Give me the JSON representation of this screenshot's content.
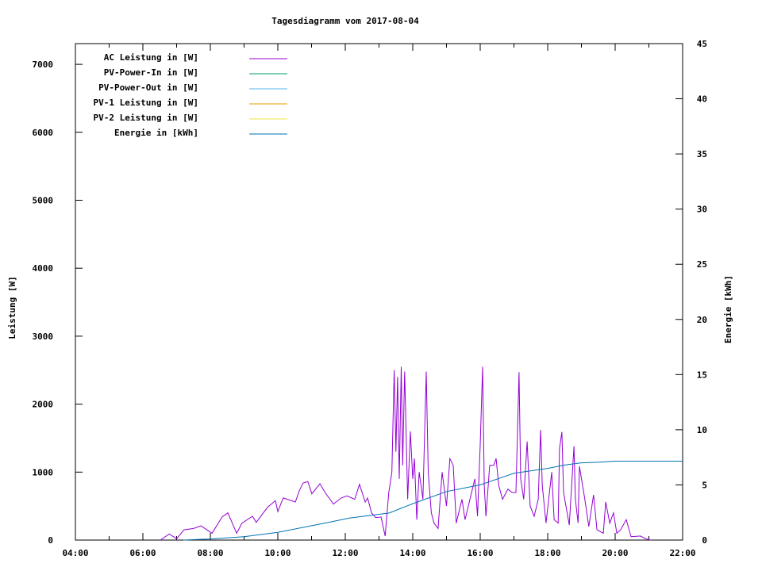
{
  "chart_data": {
    "type": "line",
    "title": "Tagesdiagramm vom 2017-08-04",
    "xlabel": "",
    "ylabel": "Leistung [W]",
    "y2label": "Energie [kWh]",
    "xlim": [
      4,
      22
    ],
    "ylim": [
      0,
      7300
    ],
    "y2lim": [
      0,
      45
    ],
    "x_ticks": [
      "04:00",
      "06:00",
      "08:00",
      "10:00",
      "12:00",
      "14:00",
      "16:00",
      "18:00",
      "20:00",
      "22:00"
    ],
    "y_ticks": [
      "0",
      "1000",
      "2000",
      "3000",
      "4000",
      "5000",
      "6000",
      "7000"
    ],
    "y2_ticks": [
      "0",
      "5",
      "10",
      "15",
      "20",
      "25",
      "30",
      "35",
      "40",
      "45"
    ],
    "legend_position": "top-left",
    "series": [
      {
        "name": "AC Leistung in [W]",
        "axis": "left",
        "color": "#9400d3",
        "points": [
          [
            6.52,
            0
          ],
          [
            6.78,
            90
          ],
          [
            7.0,
            20
          ],
          [
            7.22,
            150
          ],
          [
            7.5,
            170
          ],
          [
            7.72,
            210
          ],
          [
            8.05,
            100
          ],
          [
            8.35,
            340
          ],
          [
            8.52,
            400
          ],
          [
            8.78,
            100
          ],
          [
            8.94,
            250
          ],
          [
            9.25,
            350
          ],
          [
            9.36,
            260
          ],
          [
            9.69,
            480
          ],
          [
            9.93,
            580
          ],
          [
            10.0,
            420
          ],
          [
            10.16,
            620
          ],
          [
            10.52,
            560
          ],
          [
            10.64,
            730
          ],
          [
            10.75,
            840
          ],
          [
            10.89,
            860
          ],
          [
            11.01,
            680
          ],
          [
            11.25,
            830
          ],
          [
            11.4,
            700
          ],
          [
            11.65,
            530
          ],
          [
            11.88,
            620
          ],
          [
            12.05,
            650
          ],
          [
            12.28,
            600
          ],
          [
            12.42,
            820
          ],
          [
            12.59,
            560
          ],
          [
            12.66,
            620
          ],
          [
            12.78,
            400
          ],
          [
            12.9,
            330
          ],
          [
            13.06,
            340
          ],
          [
            13.18,
            60
          ],
          [
            13.29,
            700
          ],
          [
            13.38,
            1000
          ],
          [
            13.45,
            2500
          ],
          [
            13.5,
            1300
          ],
          [
            13.55,
            2400
          ],
          [
            13.6,
            900
          ],
          [
            13.66,
            2550
          ],
          [
            13.7,
            1100
          ],
          [
            13.76,
            2480
          ],
          [
            13.85,
            600
          ],
          [
            13.93,
            1600
          ],
          [
            14.0,
            900
          ],
          [
            14.05,
            1200
          ],
          [
            14.12,
            300
          ],
          [
            14.19,
            1000
          ],
          [
            14.3,
            600
          ],
          [
            14.4,
            2480
          ],
          [
            14.46,
            1000
          ],
          [
            14.55,
            400
          ],
          [
            14.63,
            250
          ],
          [
            14.75,
            170
          ],
          [
            14.87,
            1000
          ],
          [
            15.0,
            500
          ],
          [
            15.1,
            1200
          ],
          [
            15.2,
            1100
          ],
          [
            15.29,
            250
          ],
          [
            15.46,
            600
          ],
          [
            15.55,
            300
          ],
          [
            15.72,
            650
          ],
          [
            15.84,
            900
          ],
          [
            15.92,
            350
          ],
          [
            16.0,
            1400
          ],
          [
            16.07,
            2550
          ],
          [
            16.12,
            800
          ],
          [
            16.17,
            350
          ],
          [
            16.2,
            550
          ],
          [
            16.28,
            1100
          ],
          [
            16.4,
            1100
          ],
          [
            16.47,
            1200
          ],
          [
            16.55,
            800
          ],
          [
            16.66,
            600
          ],
          [
            16.82,
            750
          ],
          [
            16.94,
            700
          ],
          [
            17.06,
            700
          ],
          [
            17.15,
            2470
          ],
          [
            17.2,
            900
          ],
          [
            17.29,
            600
          ],
          [
            17.39,
            1450
          ],
          [
            17.48,
            500
          ],
          [
            17.6,
            350
          ],
          [
            17.72,
            600
          ],
          [
            17.79,
            1620
          ],
          [
            17.84,
            800
          ],
          [
            17.95,
            250
          ],
          [
            18.12,
            1000
          ],
          [
            18.19,
            300
          ],
          [
            18.31,
            250
          ],
          [
            18.35,
            1350
          ],
          [
            18.42,
            1590
          ],
          [
            18.47,
            700
          ],
          [
            18.64,
            220
          ],
          [
            18.78,
            1380
          ],
          [
            18.82,
            600
          ],
          [
            18.9,
            250
          ],
          [
            18.94,
            1085
          ],
          [
            19.1,
            600
          ],
          [
            19.22,
            200
          ],
          [
            19.36,
            665
          ],
          [
            19.46,
            150
          ],
          [
            19.65,
            100
          ],
          [
            19.72,
            560
          ],
          [
            19.84,
            250
          ],
          [
            19.95,
            400
          ],
          [
            20.05,
            100
          ],
          [
            20.16,
            150
          ],
          [
            20.33,
            300
          ],
          [
            20.47,
            50
          ],
          [
            20.75,
            60
          ],
          [
            20.9,
            20
          ],
          [
            21.06,
            0
          ]
        ]
      },
      {
        "name": "PV-Power-In in [W]",
        "axis": "left",
        "color": "#009e73",
        "points": []
      },
      {
        "name": "PV-Power-Out in [W]",
        "axis": "left",
        "color": "#56b4e9",
        "points": []
      },
      {
        "name": "PV-1 Leistung in [W]",
        "axis": "left",
        "color": "#e69f00",
        "points": []
      },
      {
        "name": "PV-2 Leistung in [W]",
        "axis": "left",
        "color": "#f0e442",
        "points": []
      },
      {
        "name": "Energie in [kWh]",
        "axis": "right",
        "color": "#0072b2",
        "points": [
          [
            7.2,
            0
          ],
          [
            8.0,
            0.1
          ],
          [
            9.0,
            0.3
          ],
          [
            10.0,
            0.7
          ],
          [
            11.0,
            1.3
          ],
          [
            11.5,
            1.6
          ],
          [
            12.12,
            2.0
          ],
          [
            13.3,
            2.45
          ],
          [
            14.0,
            3.3
          ],
          [
            15.0,
            4.4
          ],
          [
            16.0,
            5.0
          ],
          [
            17.0,
            6.05
          ],
          [
            18.0,
            6.5
          ],
          [
            18.5,
            6.8
          ],
          [
            19.0,
            7.0
          ],
          [
            19.5,
            7.05
          ],
          [
            20.0,
            7.15
          ],
          [
            22.0,
            7.15
          ]
        ]
      }
    ]
  }
}
